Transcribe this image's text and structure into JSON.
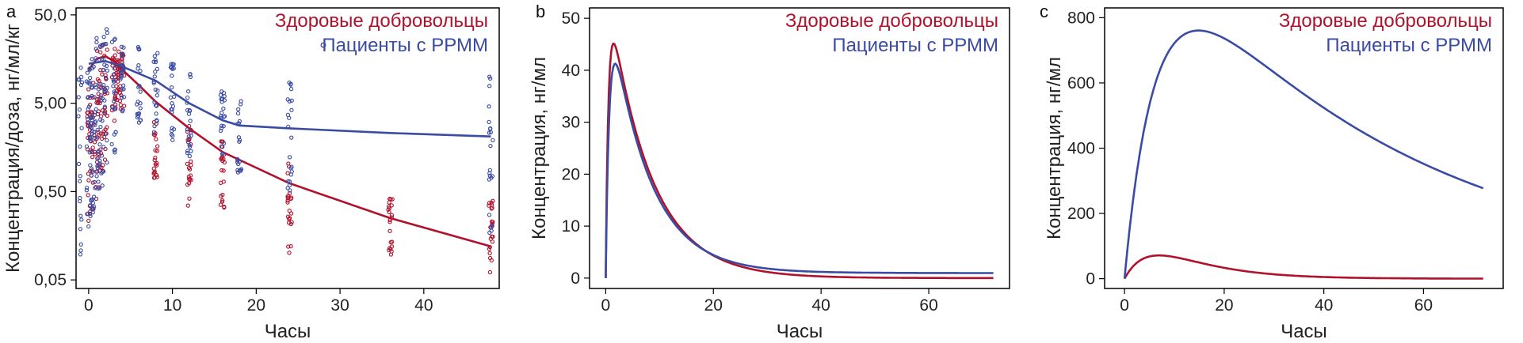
{
  "colors": {
    "healthy": "#b0112b",
    "patients": "#3a4ba3"
  },
  "chart_data": [
    {
      "panel": "a",
      "type": "scatter",
      "xlabel": "Часы",
      "ylabel": "Концентрация/доза, нг/мл/кг",
      "xlim": [
        -1.5,
        49
      ],
      "ylim": [
        0.04,
        60
      ],
      "log_y": true,
      "xticks": [
        0,
        10,
        20,
        30,
        40
      ],
      "yticks": [
        0.05,
        0.5,
        5,
        50
      ],
      "ytick_labels": [
        "0,05",
        "0,50",
        "5,00",
        "50,0"
      ],
      "legend": {
        "position": "top-right",
        "entries": [
          "Здоровые добровольцы",
          "Пациенты с РРММ"
        ]
      },
      "series": [
        {
          "name": "Здоровые добровольцы",
          "trend": {
            "x": [
              0,
              1,
              2,
              3,
              4,
              6,
              8,
              12,
              16,
              24,
              36,
              48
            ],
            "y": [
              12,
              16,
              17,
              15,
              12,
              8,
              5.2,
              2.6,
              1.4,
              0.62,
              0.25,
              0.12
            ]
          },
          "sample_times": [
            0,
            0.5,
            1,
            1.5,
            2,
            3,
            3.5,
            4,
            8,
            12,
            16,
            24,
            36,
            48
          ],
          "sample_range": [
            [
              0.15,
              8
            ],
            [
              0.3,
              12
            ],
            [
              0.4,
              20
            ],
            [
              0.6,
              25
            ],
            [
              1,
              25
            ],
            [
              3,
              25
            ],
            [
              5,
              20
            ],
            [
              4,
              18
            ],
            [
              0.7,
              4
            ],
            [
              0.3,
              3
            ],
            [
              0.25,
              2
            ],
            [
              0.1,
              1.2
            ],
            [
              0.08,
              0.5
            ],
            [
              0.06,
              0.4
            ]
          ]
        },
        {
          "name": "Пациенты с РРММ",
          "trend": {
            "x": [
              0,
              2,
              4,
              8,
              12,
              16,
              18,
              24,
              36,
              48
            ],
            "y": [
              14,
              15,
              13,
              9,
              5,
              3.2,
              2.8,
              2.6,
              2.3,
              2.1
            ]
          },
          "sample_times": [
            -1,
            0,
            0.3,
            0.6,
            1,
            1.5,
            2,
            3,
            4,
            6,
            8,
            10,
            12,
            16,
            18,
            24,
            48
          ],
          "sample_range": [
            [
              0.06,
              14
            ],
            [
              0.2,
              14
            ],
            [
              0.25,
              20
            ],
            [
              0.3,
              25
            ],
            [
              0.4,
              30
            ],
            [
              0.5,
              30
            ],
            [
              0.8,
              35
            ],
            [
              1.2,
              30
            ],
            [
              4,
              25
            ],
            [
              3,
              25
            ],
            [
              1.5,
              20
            ],
            [
              1.8,
              15
            ],
            [
              1.2,
              12
            ],
            [
              0.9,
              8
            ],
            [
              0.8,
              6
            ],
            [
              0.35,
              9
            ],
            [
              0.12,
              10
            ]
          ]
        }
      ]
    },
    {
      "panel": "b",
      "type": "line",
      "xlabel": "Часы",
      "ylabel": "Концентрация, нг/мл",
      "xlim": [
        -3,
        75
      ],
      "ylim": [
        -2,
        52
      ],
      "xticks": [
        0,
        20,
        40,
        60
      ],
      "yticks": [
        0,
        10,
        20,
        30,
        40,
        50
      ],
      "legend": {
        "position": "top-right",
        "entries": [
          "Здоровые добровольцы",
          "Пациенты с РРММ"
        ]
      },
      "series": [
        {
          "name": "Здоровые добровольцы",
          "model": {
            "A": 58.4,
            "ke": 0.13,
            "ka": 2.0,
            "xmax": 72
          }
        },
        {
          "name": "Пациенты с РРММ",
          "model": {
            "A": 56.8,
            "ke": 0.14,
            "ka": 1.5,
            "tail": 1.0,
            "tailk": 0.0005,
            "xmax": 72
          }
        }
      ]
    },
    {
      "panel": "c",
      "type": "line",
      "xlabel": "Часы",
      "ylabel": "Концентрация, нг/мл",
      "xlim": [
        -4,
        76
      ],
      "ylim": [
        -30,
        830
      ],
      "xticks": [
        0,
        20,
        40,
        60
      ],
      "yticks": [
        0,
        200,
        400,
        600,
        800
      ],
      "legend": {
        "position": "top-right",
        "entries": [
          "Здоровые добровольцы",
          "Пациенты с РРММ"
        ]
      },
      "series": [
        {
          "name": "Здоровые добровольцы",
          "model": {
            "A": 285,
            "ke": 0.1,
            "ka": 0.2,
            "xmax": 72
          }
        },
        {
          "name": "Пациенты с РРММ",
          "model": {
            "A": 1170,
            "ke": 0.02,
            "ka": 0.16,
            "xmax": 72
          }
        }
      ]
    }
  ]
}
